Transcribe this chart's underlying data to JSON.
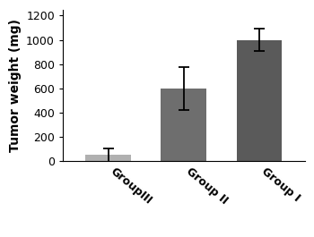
{
  "categories": [
    "GroupIII",
    "Group II",
    "Group I"
  ],
  "values": [
    50,
    600,
    1000
  ],
  "errors": [
    55,
    175,
    95
  ],
  "bar_colors": [
    "#b0b0b0",
    "#6e6e6e",
    "#5a5a5a"
  ],
  "ylabel": "Tumor weight (mg)",
  "ylim": [
    0,
    1250
  ],
  "yticks": [
    0,
    200,
    400,
    600,
    800,
    1000,
    1200
  ],
  "bar_width": 0.6,
  "xlabel_rotation": -40,
  "xlabel_ha": "left",
  "background_color": "#ffffff",
  "tick_fontsize": 9,
  "label_fontsize": 10,
  "capsize": 4,
  "elinewidth": 1.3,
  "ecapthick": 1.3
}
